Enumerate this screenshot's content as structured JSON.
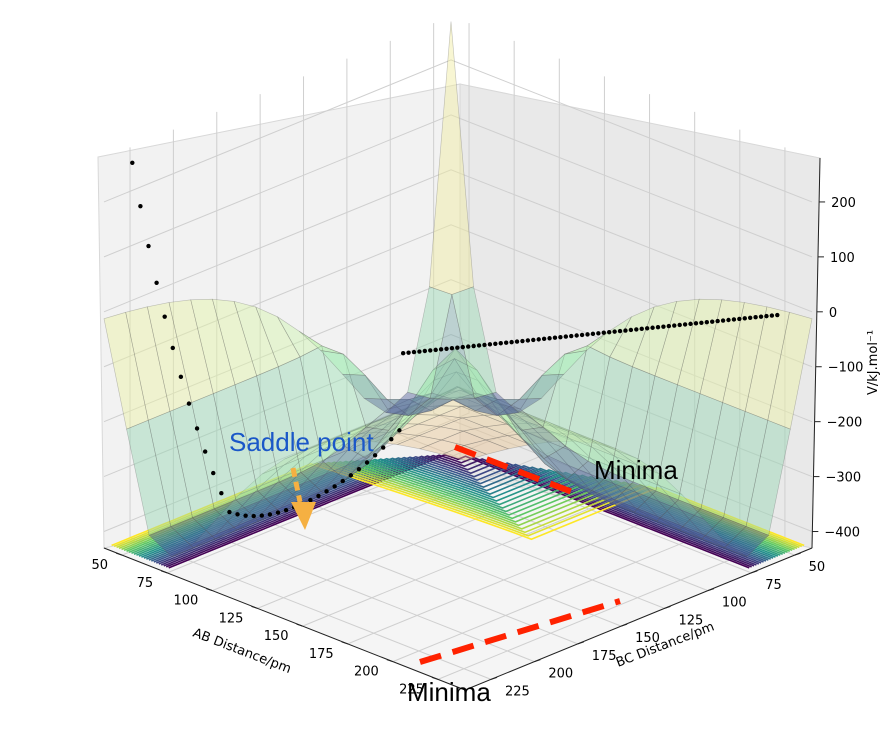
{
  "chart_data": {
    "type": "surface3d",
    "xlabel": "AB Distance/pm",
    "ylabel": "BC Distance/pm",
    "zlabel": "V/kJ.mol⁻¹",
    "x_ticks": [
      "50",
      "75",
      "100",
      "125",
      "150",
      "175",
      "200",
      "225"
    ],
    "y_ticks": [
      "50",
      "75",
      "100",
      "125",
      "150",
      "175",
      "200",
      "225"
    ],
    "z_ticks": [
      "200",
      "100",
      "0",
      "−100",
      "−200",
      "−300",
      "−400"
    ],
    "xlim": [
      40,
      240
    ],
    "ylim": [
      40,
      240
    ],
    "zlim": [
      -430,
      280
    ],
    "grid": true,
    "annotations": [
      {
        "id": "saddle",
        "text": "Saddle point",
        "color": "#1a57c8"
      },
      {
        "id": "minima-right",
        "text": "Minima",
        "color": "#000000"
      },
      {
        "id": "minima-bottom",
        "text": "Minima",
        "color": "#000000"
      }
    ],
    "arrow_color": "#f5b042",
    "path_color": "#ff2200",
    "trajectory_color": "#000000",
    "surface_colors": {
      "high": "#d97b7b",
      "mid": "#f2f2a0",
      "low": "#a8f5b8",
      "base": "#2b1f8a"
    },
    "contour_colormap": [
      "#440154",
      "#3b528b",
      "#21918c",
      "#5ec962",
      "#fde725"
    ],
    "potential": {
      "De": 400,
      "r_eq": 74,
      "barrier": -250
    }
  }
}
